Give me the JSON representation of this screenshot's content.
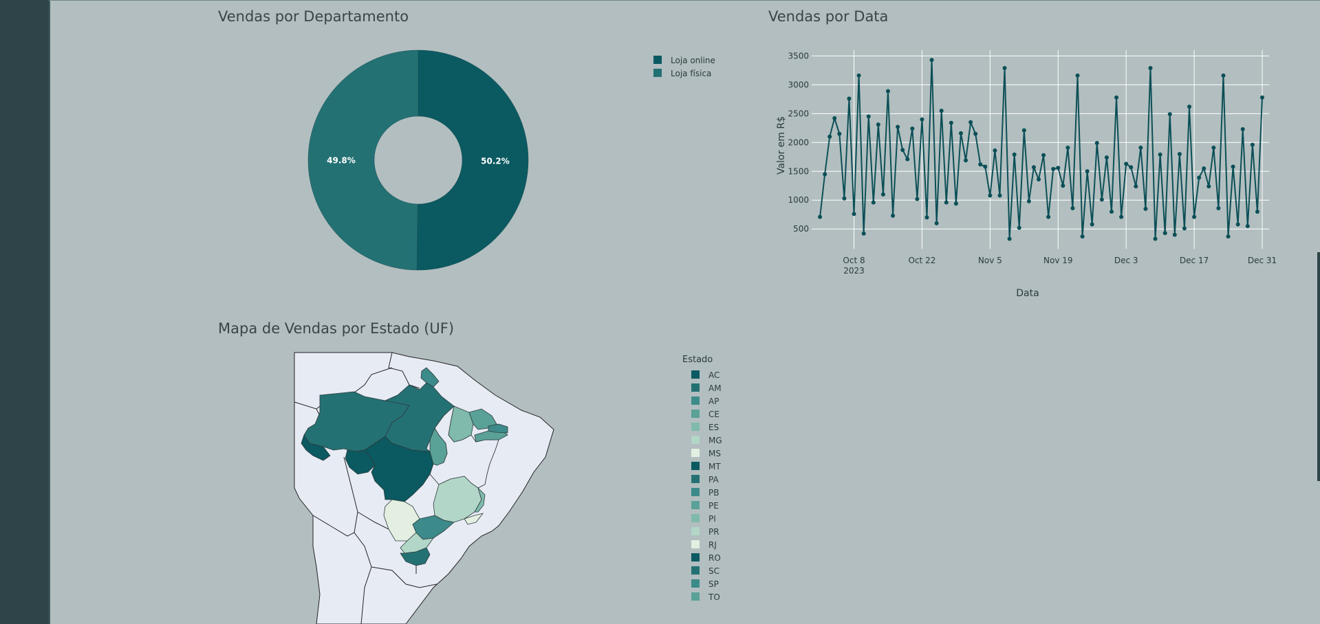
{
  "sidebar": {},
  "donut": {
    "title": "Vendas por Departamento",
    "chart_data": {
      "type": "pie",
      "hole": true,
      "slices": [
        {
          "label": "Loja online",
          "value": 50.2,
          "value_label": "50.2%",
          "color": "#0b5961"
        },
        {
          "label": "Loja física",
          "value": 49.8,
          "value_label": "49.8%",
          "color": "#247174"
        }
      ],
      "legend_placement": "top-right"
    }
  },
  "line": {
    "title": "Vendas por Data",
    "chart_data": {
      "type": "line",
      "xlabel": "Data",
      "ylabel": "Valor em R$",
      "color": "#0b4f57",
      "grid": true,
      "x_range": [
        "2023-09-30",
        "2023-12-31"
      ],
      "ylim": [
        300,
        3600
      ],
      "yticks": [
        500,
        1000,
        1500,
        2000,
        2500,
        3000,
        3500
      ],
      "xticks": [
        {
          "date": "2023-10-08",
          "label": "Oct 8",
          "sublabel": "2023"
        },
        {
          "date": "2023-10-22",
          "label": "Oct 22"
        },
        {
          "date": "2023-11-05",
          "label": "Nov 5"
        },
        {
          "date": "2023-11-19",
          "label": "Nov 19"
        },
        {
          "date": "2023-12-03",
          "label": "Dec 3"
        },
        {
          "date": "2023-12-17",
          "label": "Dec 17"
        },
        {
          "date": "2023-12-31",
          "label": "Dec 31"
        }
      ],
      "x": [
        "2023-10-01",
        "2023-10-02",
        "2023-10-03",
        "2023-10-04",
        "2023-10-05",
        "2023-10-06",
        "2023-10-07",
        "2023-10-08",
        "2023-10-09",
        "2023-10-10",
        "2023-10-11",
        "2023-10-12",
        "2023-10-13",
        "2023-10-14",
        "2023-10-15",
        "2023-10-16",
        "2023-10-17",
        "2023-10-18",
        "2023-10-19",
        "2023-10-20",
        "2023-10-21",
        "2023-10-22",
        "2023-10-23",
        "2023-10-24",
        "2023-10-25",
        "2023-10-26",
        "2023-10-27",
        "2023-10-28",
        "2023-10-29",
        "2023-10-30",
        "2023-10-31",
        "2023-11-01",
        "2023-11-02",
        "2023-11-03",
        "2023-11-04",
        "2023-11-05",
        "2023-11-06",
        "2023-11-07",
        "2023-11-08",
        "2023-11-09",
        "2023-11-10",
        "2023-11-11",
        "2023-11-12",
        "2023-11-13",
        "2023-11-14",
        "2023-11-15",
        "2023-11-16",
        "2023-11-17",
        "2023-11-18",
        "2023-11-19",
        "2023-11-20",
        "2023-11-21",
        "2023-11-22",
        "2023-11-23",
        "2023-11-24",
        "2023-11-25",
        "2023-11-26",
        "2023-11-27",
        "2023-11-28",
        "2023-11-29",
        "2023-11-30",
        "2023-12-01",
        "2023-12-02",
        "2023-12-03",
        "2023-12-04",
        "2023-12-05",
        "2023-12-06",
        "2023-12-07",
        "2023-12-08",
        "2023-12-09",
        "2023-12-10",
        "2023-12-11",
        "2023-12-12",
        "2023-12-13",
        "2023-12-14",
        "2023-12-15",
        "2023-12-16",
        "2023-12-17",
        "2023-12-18",
        "2023-12-19",
        "2023-12-20",
        "2023-12-21",
        "2023-12-22",
        "2023-12-23",
        "2023-12-24",
        "2023-12-25",
        "2023-12-26",
        "2023-12-27",
        "2023-12-28",
        "2023-12-29",
        "2023-12-30",
        "2023-12-31"
      ],
      "series": [
        {
          "values": [
            710,
            1450,
            2100,
            2420,
            2150,
            1030,
            2760,
            760,
            3160,
            420,
            2450,
            960,
            2310,
            1100,
            2890,
            730,
            2270,
            1870,
            1710,
            2240,
            1020,
            2400,
            700,
            3430,
            600,
            2550,
            960,
            2340,
            940,
            2160,
            1690,
            2350,
            2150,
            1620,
            1580,
            1080,
            1860,
            1080,
            3290,
            330,
            1790,
            520,
            2210,
            980,
            1570,
            1360,
            1780,
            710,
            1540,
            1560,
            1250,
            1910,
            860,
            3160,
            370,
            1500,
            580,
            1990,
            1010,
            1740,
            800,
            2780,
            710,
            1630,
            1570,
            1240,
            1910,
            850,
            3290,
            330,
            1790,
            430,
            2490,
            400,
            1800,
            510,
            2620,
            710,
            1390,
            1550,
            1240,
            1910,
            860,
            3160,
            370,
            1580,
            580,
            2230,
            550,
            1960,
            800,
            2780
          ]
        }
      ]
    }
  },
  "map": {
    "title": "Mapa de Vendas por Estado (UF)",
    "chart_data": {
      "type": "map",
      "legend_title": "Estado",
      "states": [
        {
          "uf": "AC",
          "color": "#0b5961"
        },
        {
          "uf": "AM",
          "color": "#247174"
        },
        {
          "uf": "AP",
          "color": "#3d8a8a"
        },
        {
          "uf": "CE",
          "color": "#5aa198"
        },
        {
          "uf": "ES",
          "color": "#7fbaac"
        },
        {
          "uf": "MG",
          "color": "#b2d6c7"
        },
        {
          "uf": "MS",
          "color": "#e3efe0"
        },
        {
          "uf": "MT",
          "color": "#0b5961"
        },
        {
          "uf": "PA",
          "color": "#247174"
        },
        {
          "uf": "PB",
          "color": "#3d8a8a"
        },
        {
          "uf": "PE",
          "color": "#5aa198"
        },
        {
          "uf": "PI",
          "color": "#7fbaac"
        },
        {
          "uf": "PR",
          "color": "#b2d6c7"
        },
        {
          "uf": "RJ",
          "color": "#e3efe0"
        },
        {
          "uf": "RO",
          "color": "#0b5961"
        },
        {
          "uf": "SC",
          "color": "#247174"
        },
        {
          "uf": "SP",
          "color": "#3d8a8a"
        },
        {
          "uf": "TO",
          "color": "#5aa198"
        }
      ]
    }
  }
}
